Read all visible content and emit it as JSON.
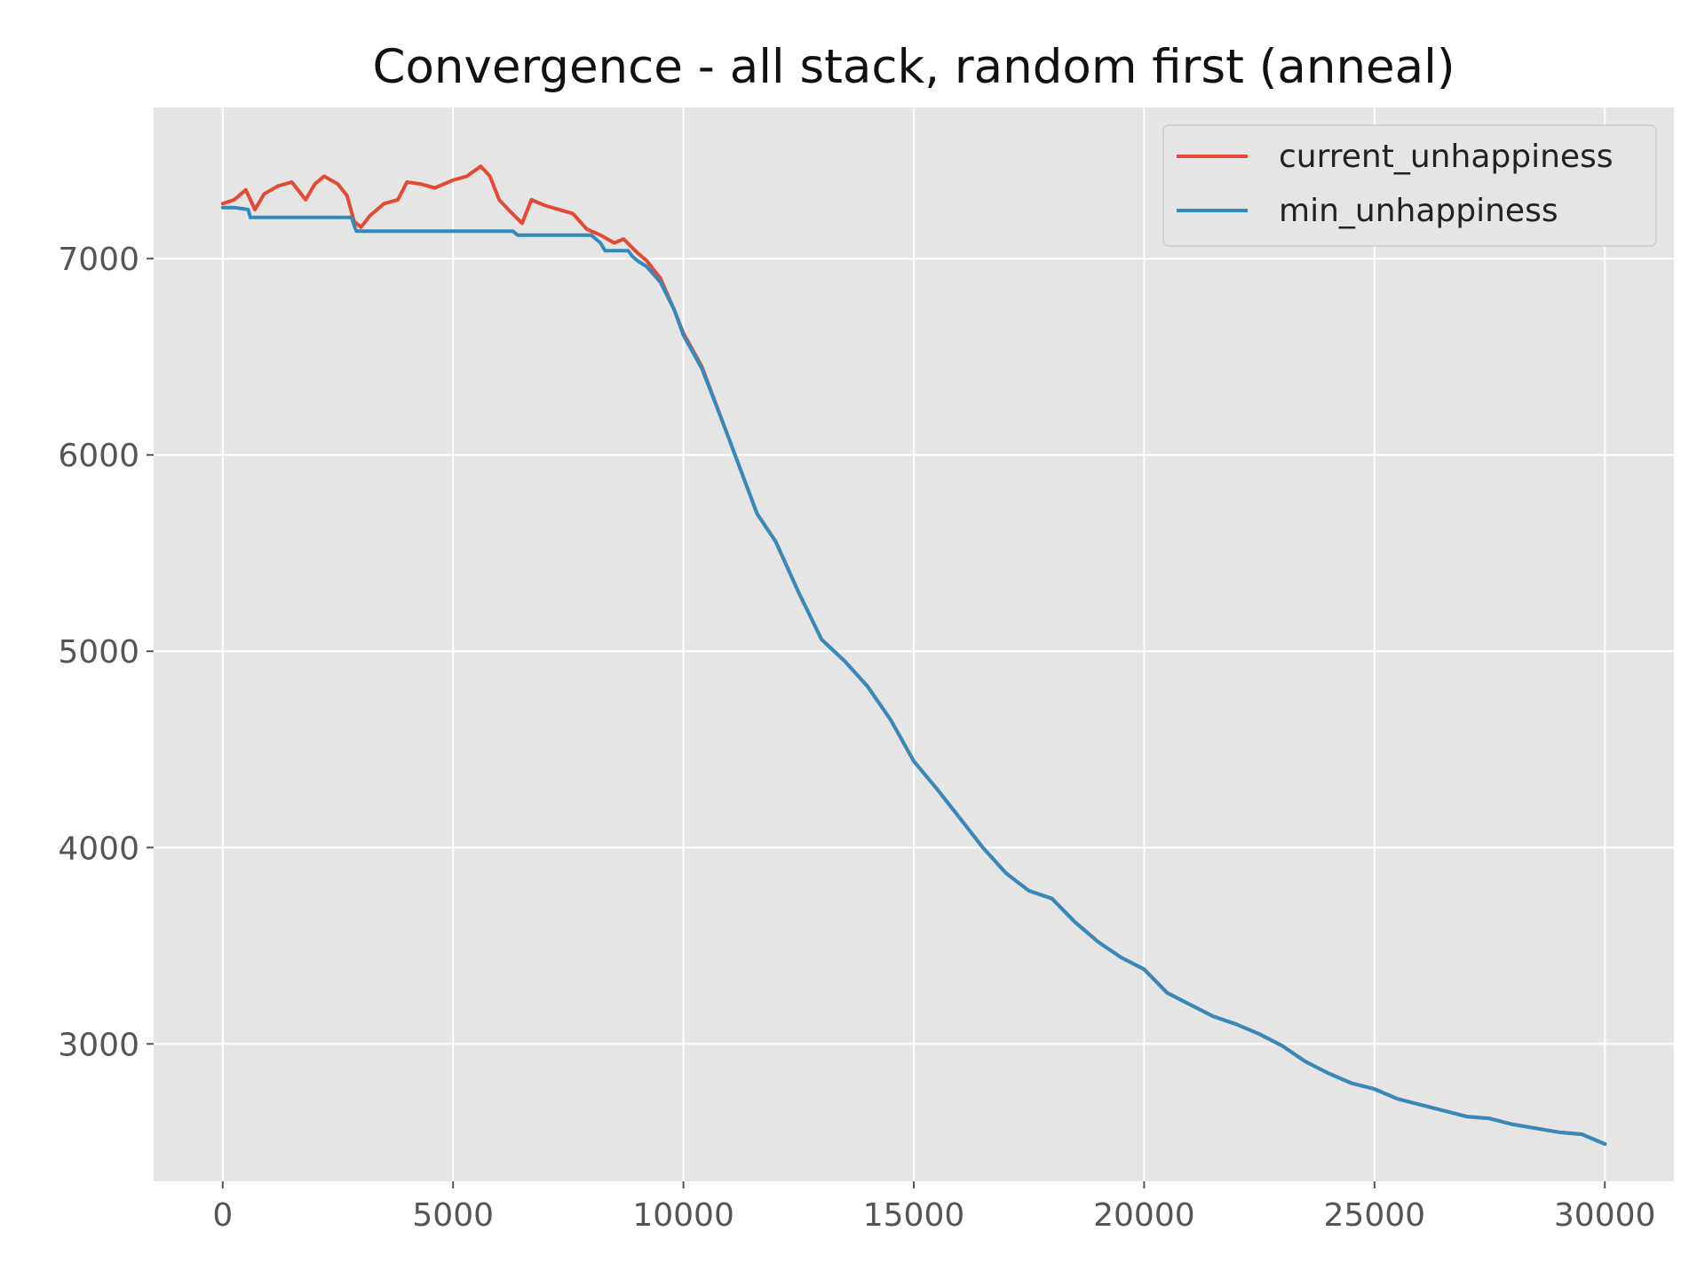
{
  "chart_data": {
    "type": "line",
    "title": "Convergence - all stack, random first (anneal)",
    "xlabel": "",
    "ylabel": "",
    "xlim": [
      -1500,
      31500
    ],
    "ylim": [
      2300,
      7770
    ],
    "x_ticks": [
      0,
      5000,
      10000,
      15000,
      20000,
      25000,
      30000
    ],
    "y_ticks": [
      3000,
      4000,
      5000,
      6000,
      7000
    ],
    "grid": true,
    "legend_position": "top-right",
    "background_color": "#e5e5e5",
    "grid_color": "#ffffff",
    "series": [
      {
        "name": "current_unhappiness",
        "color": "#e24a33",
        "x": [
          0,
          250,
          500,
          700,
          900,
          1200,
          1500,
          1800,
          2000,
          2200,
          2500,
          2700,
          2850,
          3000,
          3200,
          3500,
          3800,
          4000,
          4300,
          4600,
          5000,
          5300,
          5600,
          5800,
          6000,
          6200,
          6500,
          6700,
          7000,
          7300,
          7600,
          7900,
          8200,
          8500,
          8700,
          9000,
          9200,
          9500,
          9800,
          10000,
          10400,
          10800,
          11200,
          11600,
          12000,
          12500,
          13000,
          13500,
          14000,
          14500,
          15000,
          15500,
          16000,
          16500,
          17000,
          17500,
          18000,
          18500,
          19000,
          19500,
          20000,
          20500,
          21000,
          21500,
          22000,
          22500,
          23000,
          23500,
          24000,
          24500,
          25000,
          25500,
          26000,
          26500,
          27000,
          27500,
          28000,
          28500,
          29000,
          29500,
          30000
        ],
        "values": [
          7280,
          7300,
          7350,
          7250,
          7330,
          7370,
          7390,
          7300,
          7380,
          7420,
          7380,
          7320,
          7190,
          7160,
          7220,
          7280,
          7300,
          7390,
          7380,
          7360,
          7400,
          7420,
          7470,
          7420,
          7300,
          7250,
          7180,
          7300,
          7270,
          7250,
          7230,
          7150,
          7120,
          7080,
          7100,
          7030,
          6990,
          6900,
          6740,
          6620,
          6450,
          6200,
          5950,
          5700,
          5560,
          5300,
          5060,
          4950,
          4820,
          4650,
          4440,
          4300,
          4150,
          4000,
          3870,
          3780,
          3740,
          3620,
          3520,
          3440,
          3380,
          3260,
          3200,
          3140,
          3100,
          3050,
          2990,
          2910,
          2850,
          2800,
          2770,
          2720,
          2690,
          2660,
          2630,
          2620,
          2590,
          2570,
          2550,
          2540,
          2490
        ]
      },
      {
        "name": "min_unhappiness",
        "color": "#348abd",
        "x": [
          0,
          250,
          550,
          600,
          2800,
          2850,
          2900,
          6300,
          6400,
          8000,
          8200,
          8300,
          8800,
          8900,
          9000,
          9200,
          9500,
          9800,
          10000,
          10400,
          10800,
          11200,
          11600,
          12000,
          12500,
          13000,
          13500,
          14000,
          14500,
          15000,
          15500,
          16000,
          16500,
          17000,
          17500,
          18000,
          18500,
          19000,
          19500,
          20000,
          20500,
          21000,
          21500,
          22000,
          22500,
          23000,
          23500,
          24000,
          24500,
          25000,
          25500,
          26000,
          26500,
          27000,
          27500,
          28000,
          28500,
          29000,
          29500,
          30000
        ],
        "values": [
          7260,
          7260,
          7250,
          7210,
          7210,
          7170,
          7140,
          7140,
          7120,
          7120,
          7080,
          7040,
          7040,
          7010,
          6990,
          6960,
          6880,
          6740,
          6610,
          6440,
          6200,
          5950,
          5700,
          5560,
          5300,
          5060,
          4950,
          4820,
          4650,
          4440,
          4300,
          4150,
          4000,
          3870,
          3780,
          3740,
          3620,
          3520,
          3440,
          3380,
          3260,
          3200,
          3140,
          3100,
          3050,
          2990,
          2910,
          2850,
          2800,
          2770,
          2720,
          2690,
          2660,
          2630,
          2620,
          2590,
          2570,
          2550,
          2540,
          2490
        ]
      }
    ]
  }
}
